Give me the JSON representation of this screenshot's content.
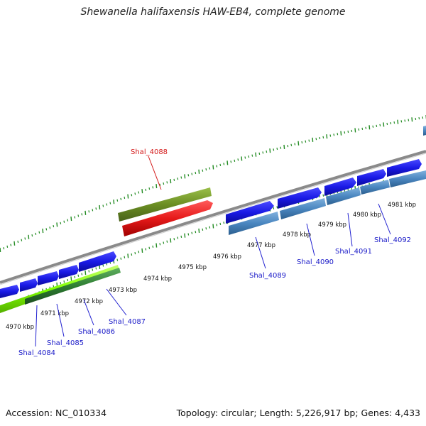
{
  "title": "Shewanella halifaxensis HAW-EB4, complete genome",
  "footer": {
    "accession": "Accession: NC_010334",
    "stats": "Topology: circular; Length: 5,226,917 bp; Genes: 4,433"
  },
  "kbp_marks": [
    "4970 kbp",
    "4971 kbp",
    "4972 kbp",
    "4973 kbp",
    "4974 kbp",
    "4975 kbp",
    "4976 kbp",
    "4977 kbp",
    "4978 kbp",
    "4979 kbp",
    "4980 kbp",
    "4981 kbp"
  ],
  "gene_labels": [
    "Shal_4084",
    "Shal_4085",
    "Shal_4086",
    "Shal_4087",
    "Shal_4088",
    "Shal_4089",
    "Shal_4090",
    "Shal_4091",
    "Shal_4092"
  ],
  "colors": {
    "cds_forward": "#1a1ae6",
    "cds_reverse": "#4a86c0",
    "rrna_red": "#e61a1a",
    "olive": "#6b8e23",
    "lime": "#7fff00",
    "dark_green": "#2e7d32",
    "backbone": "#888888",
    "tick_green": "#228b22",
    "label_blue": "#1a1ac8",
    "label_red": "#d41a1a"
  }
}
